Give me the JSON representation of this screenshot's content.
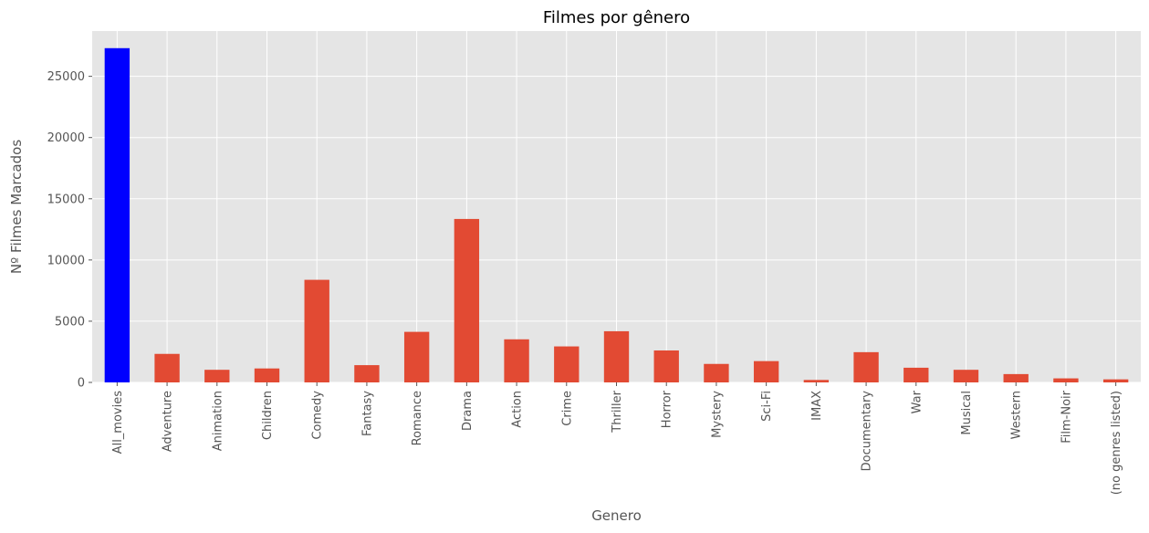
{
  "chart_data": {
    "type": "bar",
    "title": "Filmes por gênero",
    "xlabel": "Genero",
    "ylabel": "Nº Filmes Marcados",
    "ylim": [
      0,
      28700
    ],
    "yticks": [
      0,
      5000,
      10000,
      15000,
      20000,
      25000
    ],
    "grid": true,
    "categories": [
      "All_movies",
      "Adventure",
      "Animation",
      "Children",
      "Comedy",
      "Fantasy",
      "Romance",
      "Drama",
      "Action",
      "Crime",
      "Thriller",
      "Horror",
      "Mystery",
      "Sci-Fi",
      "IMAX",
      "Documentary",
      "War",
      "Musical",
      "Western",
      "Film-Noir",
      "(no genres listed)"
    ],
    "values": [
      27300,
      2330,
      1030,
      1140,
      8380,
      1410,
      4130,
      13350,
      3520,
      2940,
      4180,
      2610,
      1510,
      1740,
      200,
      2470,
      1200,
      1030,
      680,
      330,
      250
    ],
    "colors": {
      "highlight": "#0000ff",
      "default": "#e24a33",
      "plot_background": "#e5e5e5",
      "grid": "#ffffff"
    },
    "highlighted_category": "All_movies"
  }
}
